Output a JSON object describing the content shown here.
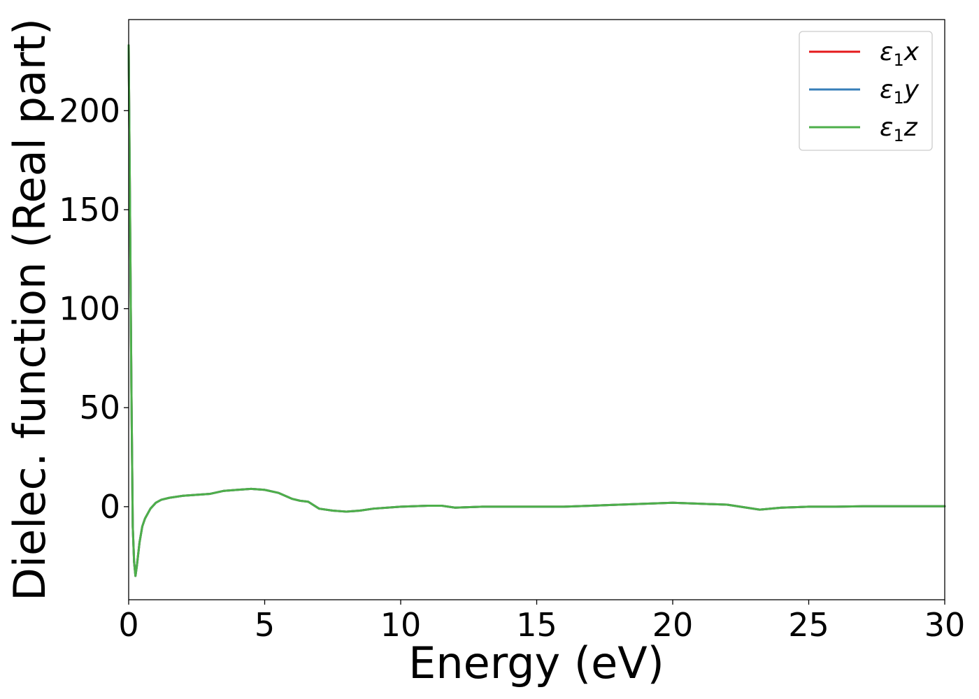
{
  "chart_data": {
    "type": "line",
    "title": "",
    "xlabel": "Energy (eV)",
    "ylabel": "Dielec. function (Real part)",
    "xlim": [
      0,
      30
    ],
    "ylim": [
      -47,
      246
    ],
    "xticks": [
      0,
      5,
      10,
      15,
      20,
      25,
      30
    ],
    "yticks": [
      0,
      50,
      100,
      150,
      200
    ],
    "grid": false,
    "legend_position": "top-right",
    "series": [
      {
        "name": "ε₁x",
        "legend_base": "ε",
        "legend_sub": "1",
        "legend_var": "x",
        "color": "#e41a1c",
        "x": [
          0.0,
          0.05,
          0.1,
          0.15,
          0.2,
          0.25,
          0.3,
          0.4,
          0.5,
          0.6,
          0.8,
          1.0,
          1.2,
          1.5,
          2.0,
          2.5,
          3.0,
          3.5,
          4.0,
          4.5,
          5.0,
          5.5,
          6.0,
          6.3,
          6.6,
          7.0,
          7.5,
          8.0,
          8.5,
          9.0,
          10.0,
          11.0,
          11.5,
          12.0,
          13.0,
          14.0,
          15.0,
          16.0,
          17.0,
          18.0,
          19.0,
          20.0,
          21.0,
          22.0,
          23.2,
          24.0,
          25.0,
          26.0,
          27.0,
          28.0,
          29.0,
          30.0
        ],
        "y": [
          233,
          150,
          60,
          -10,
          -28,
          -35,
          -30,
          -18,
          -10,
          -6,
          -1,
          2,
          3.5,
          4.5,
          5.5,
          6,
          6.5,
          8,
          8.5,
          9,
          8.5,
          7,
          4,
          3,
          2.5,
          -1,
          -2,
          -2.5,
          -2,
          -1,
          0,
          0.5,
          0.5,
          -0.5,
          0,
          0,
          0,
          0,
          0.5,
          1,
          1.5,
          2,
          1.5,
          1,
          -1.5,
          -0.5,
          0,
          0,
          0.2,
          0.2,
          0.2,
          0.2
        ]
      },
      {
        "name": "ε₁y",
        "legend_base": "ε",
        "legend_sub": "1",
        "legend_var": "y",
        "color": "#377eb8",
        "x": [
          0.0,
          0.05,
          0.1,
          0.15,
          0.2,
          0.25,
          0.3,
          0.4,
          0.5,
          0.6,
          0.8,
          1.0,
          1.2,
          1.5,
          2.0,
          2.5,
          3.0,
          3.5,
          4.0,
          4.5,
          5.0,
          5.5,
          6.0,
          6.3,
          6.6,
          7.0,
          7.5,
          8.0,
          8.5,
          9.0,
          10.0,
          11.0,
          11.5,
          12.0,
          13.0,
          14.0,
          15.0,
          16.0,
          17.0,
          18.0,
          19.0,
          20.0,
          21.0,
          22.0,
          23.2,
          24.0,
          25.0,
          26.0,
          27.0,
          28.0,
          29.0,
          30.0
        ],
        "y": [
          233,
          150,
          60,
          -10,
          -28,
          -35,
          -30,
          -18,
          -10,
          -6,
          -1,
          2,
          3.5,
          4.5,
          5.5,
          6,
          6.5,
          8,
          8.5,
          9,
          8.5,
          7,
          4,
          3,
          2.5,
          -1,
          -2,
          -2.5,
          -2,
          -1,
          0,
          0.5,
          0.5,
          -0.5,
          0,
          0,
          0,
          0,
          0.5,
          1,
          1.5,
          2,
          1.5,
          1,
          -1.5,
          -0.5,
          0,
          0,
          0.2,
          0.2,
          0.2,
          0.2
        ]
      },
      {
        "name": "ε₁z",
        "legend_base": "ε",
        "legend_sub": "1",
        "legend_var": "z",
        "color": "#4daf4a",
        "x": [
          0.0,
          0.05,
          0.1,
          0.15,
          0.2,
          0.25,
          0.3,
          0.4,
          0.5,
          0.6,
          0.8,
          1.0,
          1.2,
          1.5,
          2.0,
          2.5,
          3.0,
          3.5,
          4.0,
          4.5,
          5.0,
          5.5,
          6.0,
          6.3,
          6.6,
          7.0,
          7.5,
          8.0,
          8.5,
          9.0,
          10.0,
          11.0,
          11.5,
          12.0,
          13.0,
          14.0,
          15.0,
          16.0,
          17.0,
          18.0,
          19.0,
          20.0,
          21.0,
          22.0,
          23.2,
          24.0,
          25.0,
          26.0,
          27.0,
          28.0,
          29.0,
          30.0
        ],
        "y": [
          233,
          150,
          60,
          -10,
          -28,
          -35,
          -30,
          -18,
          -10,
          -6,
          -1,
          2,
          3.5,
          4.5,
          5.5,
          6,
          6.5,
          8,
          8.5,
          9,
          8.5,
          7,
          4,
          3,
          2.5,
          -1,
          -2,
          -2.5,
          -2,
          -1,
          0,
          0.5,
          0.5,
          -0.5,
          0,
          0,
          0,
          0,
          0.5,
          1,
          1.5,
          2,
          1.5,
          1,
          -1.5,
          -0.5,
          0,
          0,
          0.2,
          0.2,
          0.2,
          0.2
        ]
      }
    ]
  }
}
